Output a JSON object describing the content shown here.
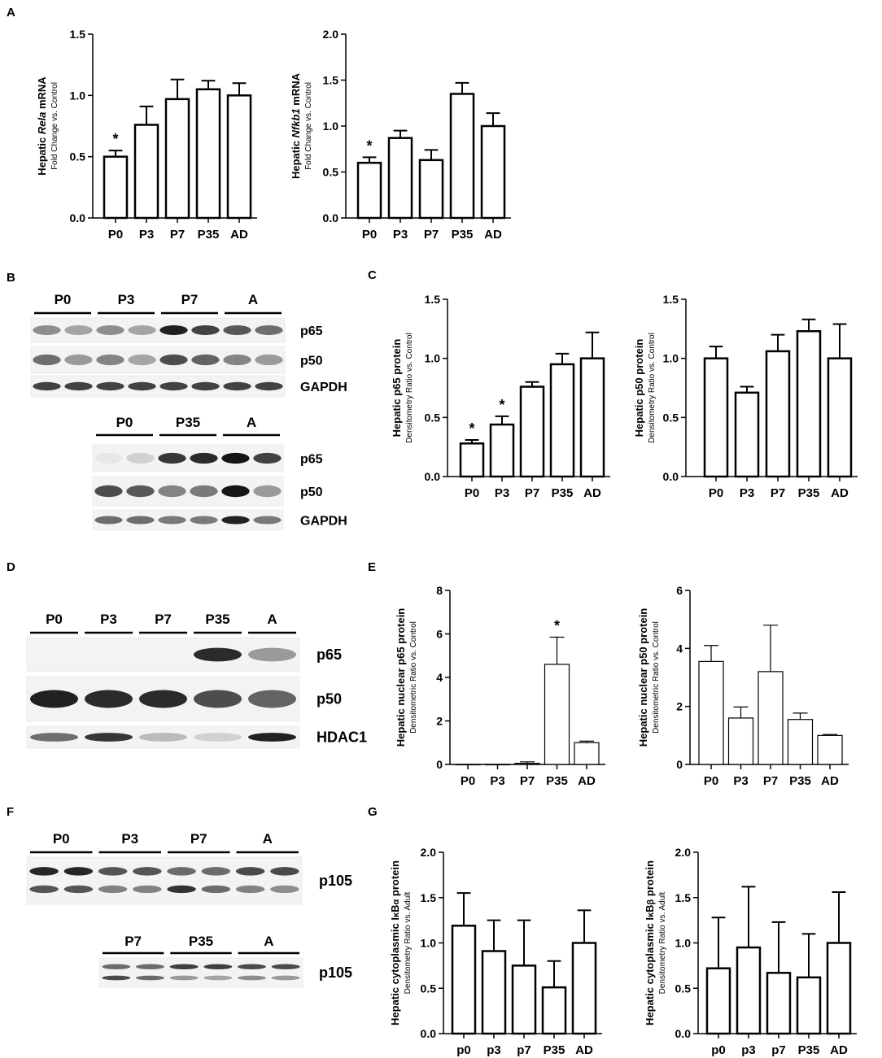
{
  "panel_labels": [
    "A",
    "B",
    "C",
    "D",
    "E",
    "F",
    "G"
  ],
  "blots": [
    {
      "panel": "B",
      "groups": [
        "P0",
        "P3",
        "P7",
        "A"
      ],
      "bands": [
        "p65",
        "p50",
        "GAPDH"
      ],
      "intensity": {
        "p65": [
          0.45,
          0.35,
          0.45,
          0.35,
          0.95,
          0.8,
          0.7,
          0.6
        ],
        "p50": [
          0.6,
          0.4,
          0.5,
          0.35,
          0.75,
          0.65,
          0.5,
          0.4
        ],
        "GAPDH": [
          0.8,
          0.8,
          0.8,
          0.8,
          0.8,
          0.8,
          0.8,
          0.8
        ]
      }
    },
    {
      "panel": "B",
      "groups": [
        "P0",
        "P35",
        "A"
      ],
      "bands": [
        "p65",
        "p50",
        "GAPDH"
      ],
      "intensity": {
        "p65": [
          0.05,
          0.15,
          0.85,
          0.9,
          1.0,
          0.8
        ],
        "p50": [
          0.75,
          0.7,
          0.5,
          0.55,
          1.0,
          0.4
        ],
        "GAPDH": [
          0.6,
          0.6,
          0.55,
          0.55,
          0.95,
          0.55
        ]
      }
    },
    {
      "panel": "D",
      "groups": [
        "P0",
        "P3",
        "P7",
        "P35",
        "A"
      ],
      "bands": [
        "p65",
        "p50",
        "HDAC1"
      ],
      "intensity": {
        "p65": [
          0,
          0,
          0,
          0.9,
          0.4
        ],
        "p50": [
          0.95,
          0.9,
          0.9,
          0.75,
          0.65
        ],
        "HDAC1": [
          0.6,
          0.85,
          0.25,
          0.15,
          0.95
        ]
      }
    },
    {
      "panel": "F",
      "groups": [
        "P0",
        "P3",
        "P7",
        "A"
      ],
      "bands": [
        "p105"
      ],
      "intensity": {
        "p105_upper": [
          0.9,
          0.9,
          0.7,
          0.7,
          0.6,
          0.6,
          0.75,
          0.75
        ],
        "p105_lower": [
          0.7,
          0.7,
          0.5,
          0.5,
          0.85,
          0.6,
          0.5,
          0.45
        ]
      }
    },
    {
      "panel": "F",
      "groups": [
        "P7",
        "P35",
        "A"
      ],
      "bands": [
        "p105"
      ],
      "intensity": {
        "p105_upper": [
          0.6,
          0.6,
          0.8,
          0.8,
          0.75,
          0.75
        ],
        "p105_lower": [
          0.75,
          0.6,
          0.4,
          0.35,
          0.45,
          0.4
        ]
      }
    }
  ],
  "chart_data": [
    {
      "id": "A1",
      "panel": "A",
      "type": "bar",
      "categories": [
        "P0",
        "P3",
        "P7",
        "P35",
        "AD"
      ],
      "values": [
        0.5,
        0.76,
        0.97,
        1.05,
        1.0
      ],
      "errors": [
        0.05,
        0.15,
        0.16,
        0.07,
        0.1
      ],
      "significant": [
        true,
        false,
        false,
        false,
        false
      ],
      "ylabel_parts": [
        "Hepatic ",
        "Rela",
        " mRNA"
      ],
      "ylabel_sub": "Fold Change vs. Control",
      "ylim": [
        0,
        1.5
      ],
      "yticks": [
        "0.0",
        "0.5",
        "1.0",
        "1.5"
      ]
    },
    {
      "id": "A2",
      "panel": "A",
      "type": "bar",
      "categories": [
        "P0",
        "P3",
        "P7",
        "P35",
        "AD"
      ],
      "values": [
        0.6,
        0.87,
        0.63,
        1.35,
        1.0
      ],
      "errors": [
        0.06,
        0.08,
        0.11,
        0.12,
        0.14
      ],
      "significant": [
        true,
        false,
        false,
        false,
        false
      ],
      "ylabel_parts": [
        "Hepatic ",
        "Nfkb1",
        " mRNA"
      ],
      "ylabel_sub": "Fold Change vs. Control",
      "ylim": [
        0,
        2.0
      ],
      "yticks": [
        "0.0",
        "0.5",
        "1.0",
        "1.5",
        "2.0"
      ]
    },
    {
      "id": "C1",
      "panel": "C",
      "type": "bar",
      "categories": [
        "P0",
        "P3",
        "P7",
        "P35",
        "AD"
      ],
      "values": [
        0.28,
        0.44,
        0.76,
        0.95,
        1.0
      ],
      "errors": [
        0.03,
        0.07,
        0.04,
        0.09,
        0.22
      ],
      "significant": [
        true,
        true,
        false,
        false,
        false
      ],
      "ylabel_parts": [
        "Hepatic p65 protein"
      ],
      "ylabel_sub": "Densitometry Ratio vs. Control",
      "ylim": [
        0,
        1.5
      ],
      "yticks": [
        "0.0",
        "0.5",
        "1.0",
        "1.5"
      ]
    },
    {
      "id": "C2",
      "panel": "C",
      "type": "bar",
      "categories": [
        "P0",
        "P3",
        "P7",
        "P35",
        "AD"
      ],
      "values": [
        1.0,
        0.71,
        1.06,
        1.23,
        1.0
      ],
      "errors": [
        0.1,
        0.05,
        0.14,
        0.1,
        0.29
      ],
      "significant": [
        false,
        false,
        false,
        false,
        false
      ],
      "ylabel_parts": [
        "Hepatic p50 protein"
      ],
      "ylabel_sub": "Densitometry Ratio vs. Control",
      "ylim": [
        0,
        1.5
      ],
      "yticks": [
        "0.0",
        "0.5",
        "1.0",
        "1.5"
      ]
    },
    {
      "id": "E1",
      "panel": "E",
      "type": "bar",
      "categories": [
        "P0",
        "P3",
        "P7",
        "P35",
        "AD"
      ],
      "values": [
        0.0,
        0.0,
        0.05,
        4.6,
        1.0
      ],
      "errors": [
        0.0,
        0.0,
        0.07,
        1.25,
        0.07
      ],
      "significant": [
        false,
        false,
        false,
        true,
        false
      ],
      "ylabel_parts": [
        "Hepatic nuclear p65 protein"
      ],
      "ylabel_sub": "Densitometric Ratio vs. Control",
      "ylim": [
        0,
        8
      ],
      "yticks": [
        "0",
        "2",
        "4",
        "6",
        "8"
      ]
    },
    {
      "id": "E2",
      "panel": "E",
      "type": "bar",
      "categories": [
        "P0",
        "P3",
        "P7",
        "P35",
        "AD"
      ],
      "values": [
        3.55,
        1.6,
        3.2,
        1.55,
        1.0
      ],
      "errors": [
        0.55,
        0.38,
        1.6,
        0.22,
        0.03
      ],
      "significant": [
        false,
        false,
        false,
        false,
        false
      ],
      "ylabel_parts": [
        "Hepatic nuclear p50 protein"
      ],
      "ylabel_sub": "Densitometric Ratio vs. Control",
      "ylim": [
        0,
        6
      ],
      "yticks": [
        "0",
        "2",
        "4",
        "6"
      ]
    },
    {
      "id": "G1",
      "panel": "G",
      "type": "bar",
      "categories": [
        "p0",
        "p3",
        "p7",
        "P35",
        "AD"
      ],
      "values": [
        1.19,
        0.91,
        0.75,
        0.51,
        1.0
      ],
      "errors": [
        0.36,
        0.34,
        0.5,
        0.29,
        0.36
      ],
      "significant": [
        false,
        false,
        false,
        false,
        false
      ],
      "ylabel_parts": [
        "Hepatic cytoplasmic I",
        "κ",
        "B",
        "α",
        " protein"
      ],
      "ylabel_sub": "Densitometry Ratio vs. Adult",
      "ylim": [
        0,
        2.0
      ],
      "yticks": [
        "0.0",
        "0.5",
        "1.0",
        "1.5",
        "2.0"
      ]
    },
    {
      "id": "G2",
      "panel": "G",
      "type": "bar",
      "categories": [
        "p0",
        "p3",
        "p7",
        "P35",
        "AD"
      ],
      "values": [
        0.72,
        0.95,
        0.67,
        0.62,
        1.0
      ],
      "errors": [
        0.56,
        0.67,
        0.56,
        0.48,
        0.56
      ],
      "significant": [
        false,
        false,
        false,
        false,
        false
      ],
      "ylabel_parts": [
        "Hepatic cytoplasmic I",
        "κ",
        "B",
        "β",
        " protein"
      ],
      "ylabel_sub": "Densitometry Ratio vs. Adult",
      "ylim": [
        0,
        2.0
      ],
      "yticks": [
        "0.0",
        "0.5",
        "1.0",
        "1.5",
        "2.0"
      ]
    }
  ]
}
